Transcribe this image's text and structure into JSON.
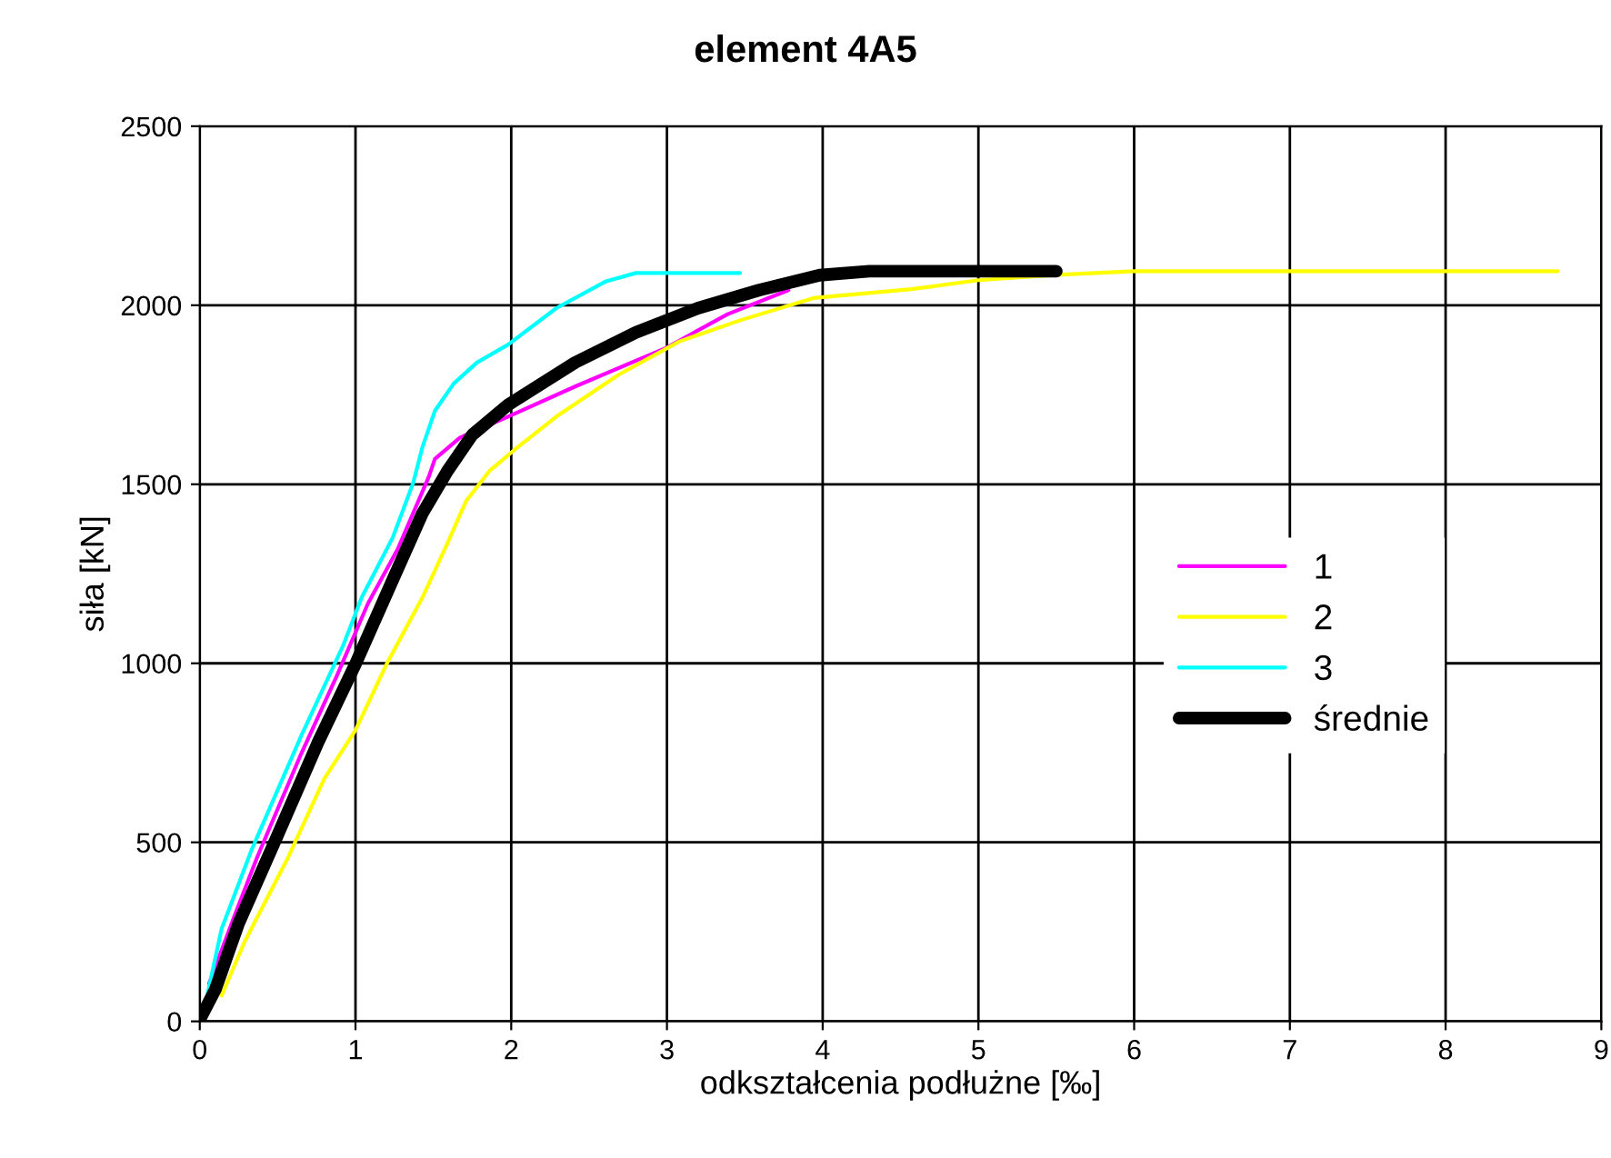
{
  "chart_data": {
    "type": "line",
    "title": "element 4A5",
    "xlabel": "odkształcenia podłużne [‰]",
    "ylabel": "siła [kN]",
    "xlim": [
      0,
      9
    ],
    "xticks": [
      0,
      1,
      2,
      3,
      4,
      5,
      6,
      7,
      8,
      9
    ],
    "ylim": [
      0,
      2500
    ],
    "yticks": [
      0,
      500,
      1000,
      1500,
      2000,
      2500
    ],
    "grid": true,
    "legend": "right",
    "marker": "none",
    "line_style": "solid",
    "series": [
      {
        "name": "1",
        "color": "#ff00ff",
        "x": [
          0.06,
          0.22,
          0.37,
          0.65,
          0.88,
          1.08,
          1.27,
          1.47,
          1.51,
          1.67,
          1.98,
          2.41,
          3.0,
          3.39,
          3.78
        ],
        "values": [
          106,
          291,
          460,
          746,
          965,
          1167,
          1318,
          1520,
          1571,
          1630,
          1689,
          1773,
          1882,
          1975,
          2042
        ]
      },
      {
        "name": "2",
        "color": "#ffff00",
        "x": [
          0.14,
          0.29,
          0.57,
          0.8,
          1.0,
          1.2,
          1.43,
          1.59,
          1.71,
          1.86,
          2.02,
          2.29,
          2.69,
          3.08,
          3.47,
          3.94,
          4.57,
          5.0,
          5.5,
          6.0,
          8.72
        ],
        "values": [
          72,
          224,
          460,
          678,
          813,
          998,
          1184,
          1335,
          1453,
          1537,
          1596,
          1689,
          1806,
          1899,
          1958,
          2020,
          2045,
          2070,
          2085,
          2095,
          2095
        ]
      },
      {
        "name": "3",
        "color": "#00ffff",
        "x": [
          0.04,
          0.14,
          0.33,
          0.65,
          0.92,
          1.04,
          1.24,
          1.37,
          1.43,
          1.51,
          1.63,
          1.78,
          1.98,
          2.29,
          2.61,
          2.8,
          3.47
        ],
        "values": [
          56,
          258,
          476,
          796,
          1049,
          1184,
          1352,
          1503,
          1604,
          1705,
          1781,
          1840,
          1890,
          1992,
          2067,
          2090,
          2090
        ]
      },
      {
        "name": "średnie",
        "color": "#000000",
        "x": [
          0.0,
          0.1,
          0.25,
          0.49,
          0.76,
          1.0,
          1.24,
          1.43,
          1.59,
          1.75,
          1.98,
          2.41,
          2.8,
          3.2,
          3.59,
          3.98,
          4.3,
          5.5
        ],
        "values": [
          5,
          89,
          274,
          510,
          780,
          998,
          1234,
          1419,
          1537,
          1638,
          1722,
          1840,
          1924,
          1992,
          2042,
          2084,
          2095,
          2095
        ]
      }
    ]
  }
}
